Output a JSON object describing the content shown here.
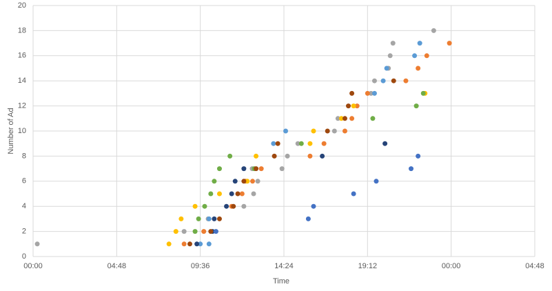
{
  "chart_data": {
    "type": "scatter",
    "x_label": "Time",
    "y_label": "Number of Ad",
    "xlim": [
      0,
      28.8
    ],
    "xticks": [
      {
        "value": 0,
        "label": "00:00"
      },
      {
        "value": 4.8,
        "label": "04:48"
      },
      {
        "value": 9.6,
        "label": "09:36"
      },
      {
        "value": 14.4,
        "label": "14:24"
      },
      {
        "value": 19.2,
        "label": "19:12"
      },
      {
        "value": 24,
        "label": "00:00"
      },
      {
        "value": 28.8,
        "label": "04:48"
      }
    ],
    "ylim": [
      0,
      20
    ],
    "yticks": [
      0,
      2,
      4,
      6,
      8,
      10,
      12,
      14,
      16,
      18,
      20
    ],
    "grid": true,
    "series": [
      {
        "color": "#a5a5a5",
        "x": [
          0.24,
          8.67,
          10.05,
          12.1,
          12.66,
          12.58,
          12.9,
          14.29,
          14.6,
          15.2,
          17.3,
          17.5,
          19.4,
          19.6,
          20.4,
          20.5,
          20.66,
          23.0
        ],
        "values": [
          1,
          2,
          3,
          4,
          5,
          7,
          6,
          7,
          8,
          9,
          10,
          11,
          13,
          14,
          15,
          16,
          17,
          18
        ]
      },
      {
        "color": "#ed7d31",
        "x": [
          8.67,
          9.8,
          11.4,
          12.0,
          12.2,
          12.6,
          13.1,
          15.9,
          16.7,
          17.9,
          18.3,
          18.6,
          19.2,
          21.4,
          22.1,
          22.6,
          23.9
        ],
        "values": [
          1,
          2,
          4,
          5,
          6,
          6,
          7,
          8,
          9,
          10,
          11,
          12,
          13,
          14,
          15,
          16,
          17
        ]
      },
      {
        "color": "#ffc000",
        "x": [
          7.8,
          8.2,
          8.5,
          9.3,
          10.7,
          12.3,
          12.8,
          15.9,
          16.1,
          17.7,
          18.4,
          22.5
        ],
        "values": [
          1,
          2,
          3,
          4,
          5,
          6,
          8,
          9,
          10,
          11,
          12,
          13
        ]
      },
      {
        "color": "#5b9bd5",
        "x": [
          9.6,
          10.1,
          10.1,
          13.8,
          14.5,
          19.6,
          20.1,
          20.3,
          21.9,
          22.2
        ],
        "values": [
          1,
          1,
          3,
          9,
          10,
          13,
          14,
          15,
          16,
          17
        ]
      },
      {
        "color": "#70ad47",
        "x": [
          9.3,
          9.5,
          9.85,
          10.2,
          10.4,
          10.7,
          11.3,
          12.7,
          15.4,
          19.5,
          22.0,
          22.4
        ],
        "values": [
          2,
          3,
          4,
          5,
          6,
          7,
          8,
          7,
          9,
          11,
          12,
          13
        ]
      },
      {
        "color": "#264478",
        "x": [
          9.4,
          10.3,
          10.4,
          11.1,
          11.4,
          11.6,
          12.1,
          16.6,
          20.2
        ],
        "values": [
          1,
          2,
          3,
          4,
          5,
          6,
          7,
          8,
          9
        ]
      },
      {
        "color": "#4472c4",
        "x": [
          10.5,
          15.8,
          16.1,
          18.4,
          19.7,
          21.7,
          22.1
        ],
        "values": [
          2,
          3,
          4,
          5,
          6,
          7,
          8
        ]
      },
      {
        "color": "#9e480e",
        "x": [
          9.0,
          10.2,
          10.7,
          11.5,
          11.75,
          12.1,
          12.8,
          13.85,
          14.05,
          16.9,
          17.9,
          18.1,
          18.3,
          20.7
        ],
        "values": [
          1,
          2,
          3,
          4,
          5,
          6,
          7,
          8,
          9,
          10,
          11,
          12,
          13,
          14
        ]
      }
    ]
  }
}
